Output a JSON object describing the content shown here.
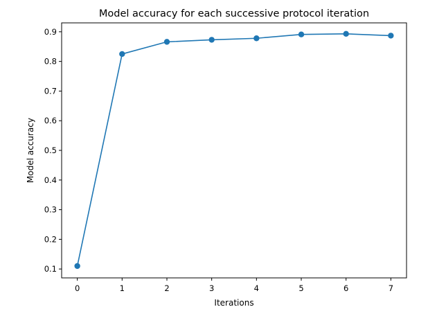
{
  "chart_data": {
    "type": "line",
    "title": "Model accuracy for each successive protocol iteration",
    "xlabel": "Iterations",
    "ylabel": "Model accuracy",
    "x": [
      0,
      1,
      2,
      3,
      4,
      5,
      6,
      7
    ],
    "x_ticks": [
      "0",
      "1",
      "2",
      "3",
      "4",
      "5",
      "6",
      "7"
    ],
    "y_ticks": [
      "0.1",
      "0.2",
      "0.3",
      "0.4",
      "0.5",
      "0.6",
      "0.7",
      "0.8",
      "0.9"
    ],
    "xlim": [
      -0.35,
      7.35
    ],
    "ylim": [
      0.07,
      0.93
    ],
    "series": [
      {
        "values": [
          0.11,
          0.825,
          0.866,
          0.873,
          0.878,
          0.891,
          0.893,
          0.887
        ],
        "color": "#1f77b4",
        "marker": "circle"
      }
    ],
    "grid": false,
    "legend": "none"
  }
}
